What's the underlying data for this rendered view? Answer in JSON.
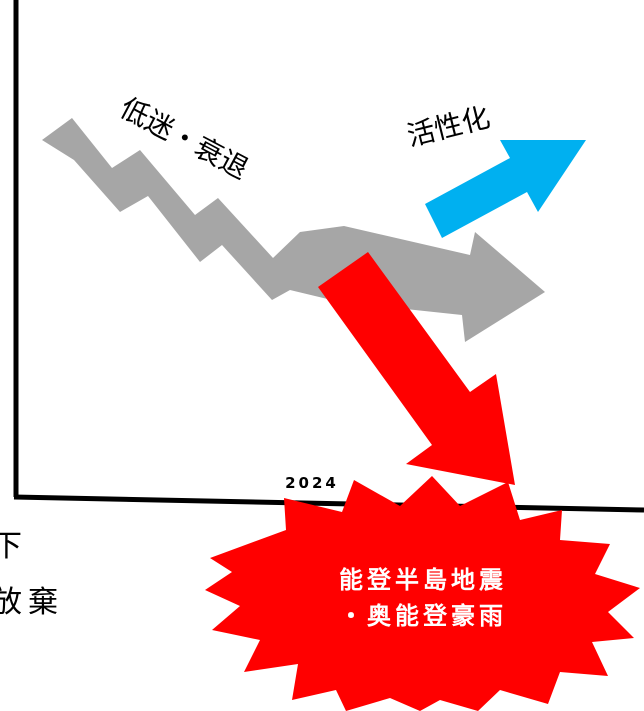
{
  "axis": {
    "x_label": "2024"
  },
  "arrows": {
    "decline": {
      "label": "低迷・衰退",
      "color": "#a6a6a6"
    },
    "revitalization": {
      "label": "活性化",
      "color": "#00b0f0"
    },
    "disaster": {
      "color": "#ff0000"
    }
  },
  "burst": {
    "line1": "能登半島地震",
    "line2": "・奥能登豪雨",
    "color": "#ff0000"
  },
  "left_text": {
    "line1": "下",
    "line2": "放棄"
  }
}
